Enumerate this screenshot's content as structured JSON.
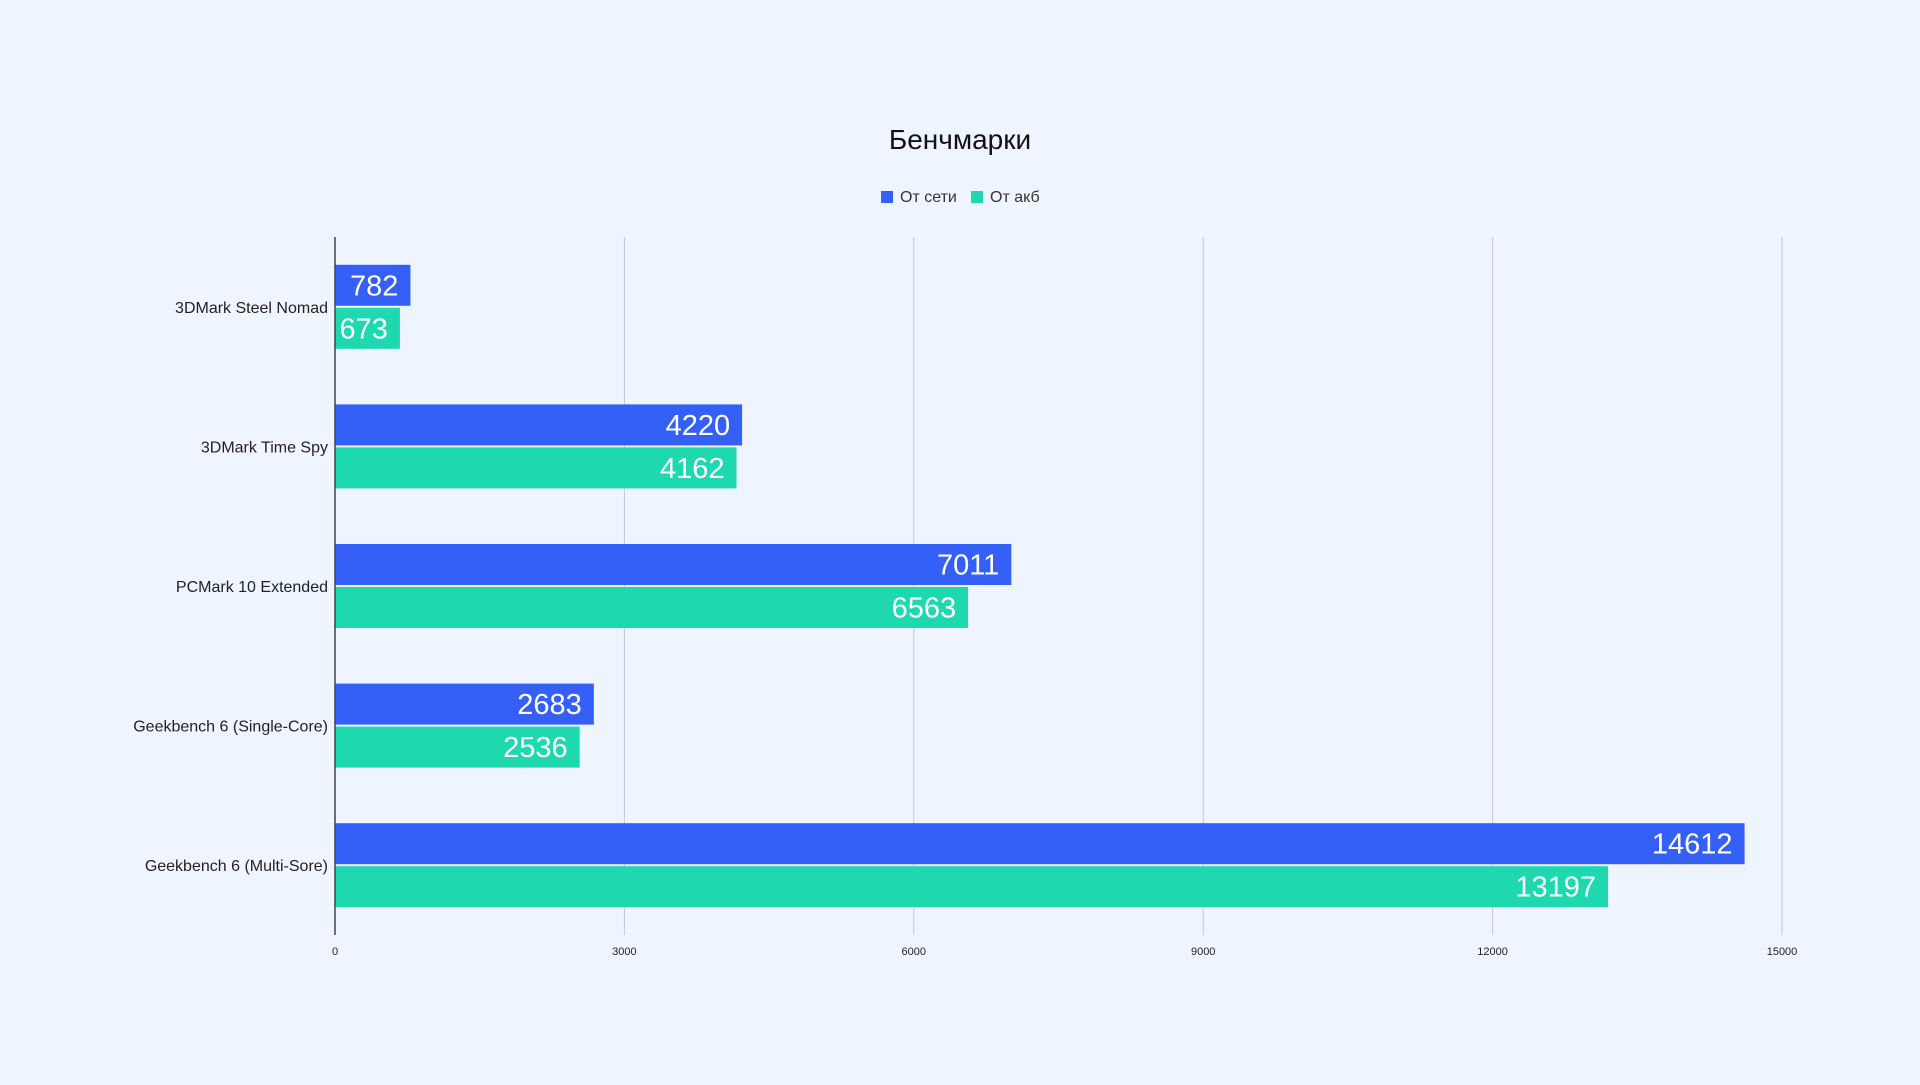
{
  "chart_data": {
    "type": "bar",
    "orientation": "horizontal",
    "title": "Бенчмарки",
    "categories": [
      "3DMark Steel Nomad",
      "3DMark Time Spy",
      "PCMark 10 Extended",
      "Geekbench 6 (Single-Core)",
      "Geekbench 6 (Multi-Sore)"
    ],
    "series": [
      {
        "name": "От сети",
        "color": "#3460f7",
        "values": [
          782,
          4220,
          7011,
          2683,
          14612
        ]
      },
      {
        "name": "От акб",
        "color": "#1ed9b0",
        "values": [
          673,
          4162,
          6563,
          2536,
          13197
        ]
      }
    ],
    "xlim": [
      0,
      15000
    ],
    "xticks": [
      0,
      3000,
      6000,
      9000,
      12000,
      15000
    ],
    "grid": true,
    "legend": "top-center",
    "data_labels": true
  }
}
